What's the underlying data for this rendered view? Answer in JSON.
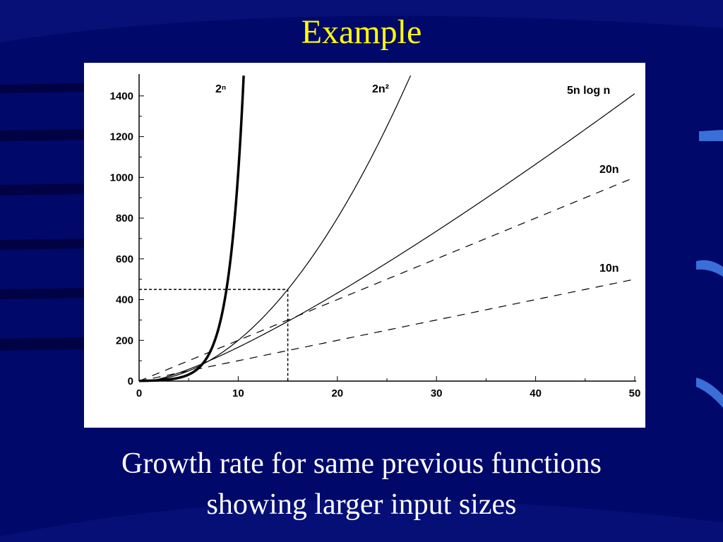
{
  "slide": {
    "title": "Example",
    "caption_line1": "Growth rate for same previous functions",
    "caption_line2": "showing larger input sizes",
    "colors": {
      "background": "#00086a",
      "title": "#ffff00",
      "caption": "#ffffff",
      "panel": "#ffffff"
    }
  },
  "chart_data": {
    "type": "line",
    "title": "",
    "xlabel": "",
    "ylabel": "",
    "xlim": [
      0,
      50
    ],
    "ylim": [
      0,
      1500
    ],
    "xticks": [
      0,
      10,
      20,
      30,
      40,
      50
    ],
    "yticks": [
      0,
      200,
      400,
      600,
      800,
      1000,
      1200,
      1400
    ],
    "grid": false,
    "series": [
      {
        "name": "2ⁿ",
        "function": "2^n",
        "style": "bold",
        "x_range": [
          0,
          10.55
        ]
      },
      {
        "name": "2n²",
        "function": "2n^2",
        "style": "solid",
        "x_range": [
          0,
          27.4
        ]
      },
      {
        "name": "5n log n",
        "function": "5n log2 n",
        "style": "solid",
        "x_range": [
          1,
          50
        ]
      },
      {
        "name": "20n",
        "function": "20n",
        "style": "dashed",
        "x_range": [
          0,
          50
        ]
      },
      {
        "name": "10n",
        "function": "10n",
        "style": "dashed",
        "x_range": [
          0,
          50
        ]
      }
    ],
    "annotations": [
      {
        "type": "reference-box",
        "x": 15,
        "y": 450,
        "style": "dotted"
      }
    ]
  }
}
